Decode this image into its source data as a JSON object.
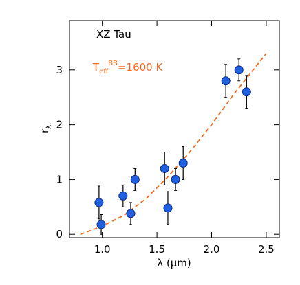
{
  "chart_data": {
    "type": "scatter",
    "annotation_title": "XZ Tau",
    "annotation_model": {
      "base": "T",
      "sub": "eff",
      "sup": "BB",
      "rest": "=1600 K"
    },
    "xlabel": "λ (μm)",
    "ylabel": {
      "base": "r",
      "sub": "λ"
    },
    "x": [
      0.97,
      0.99,
      1.19,
      1.26,
      1.3,
      1.57,
      1.6,
      1.67,
      1.74,
      2.13,
      2.25,
      2.32
    ],
    "values": [
      0.58,
      0.18,
      0.7,
      0.38,
      1.0,
      1.2,
      0.48,
      1.0,
      1.3,
      2.8,
      3.0,
      2.6
    ],
    "errors": [
      0.3,
      0.18,
      0.2,
      0.2,
      0.2,
      0.3,
      0.3,
      0.2,
      0.3,
      0.3,
      0.2,
      0.3
    ],
    "color": "#1f5fe0",
    "model": {
      "x": [
        0.8,
        1.0,
        1.2,
        1.4,
        1.6,
        1.8,
        2.0,
        2.2,
        2.4,
        2.5
      ],
      "values": [
        0,
        0.15,
        0.35,
        0.65,
        1.05,
        1.5,
        2.0,
        2.55,
        3.05,
        3.3
      ],
      "color": "#f26b21",
      "style": "dashed"
    },
    "xlim": [
      0.7,
      2.62
    ],
    "ylim": [
      -0.06,
      3.9
    ],
    "xticks": [
      {
        "value": 1,
        "label": "1.0"
      },
      1.5,
      {
        "value": 2,
        "label": "2.0"
      },
      2.5
    ],
    "yticks": [
      0,
      1,
      2,
      3
    ]
  }
}
